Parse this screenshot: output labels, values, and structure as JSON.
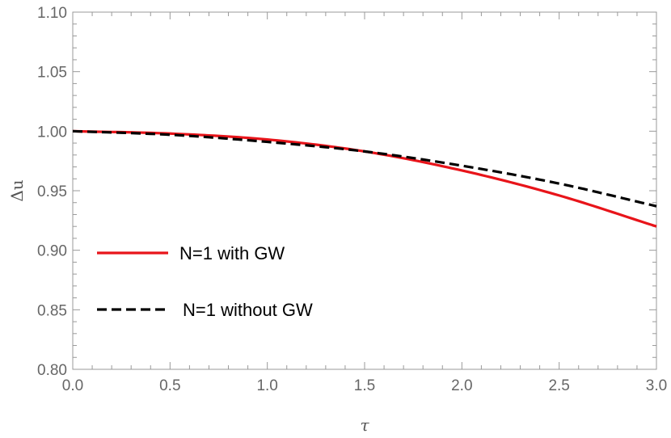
{
  "chart_data": {
    "type": "line",
    "title": "",
    "xlabel": "τ",
    "ylabel": "Δu",
    "xlim": [
      0.0,
      3.0
    ],
    "ylim": [
      0.8,
      1.1
    ],
    "xticks": [
      "0.0",
      "0.5",
      "1.0",
      "1.5",
      "2.0",
      "2.5",
      "3.0"
    ],
    "yticks": [
      "0.80",
      "0.85",
      "0.90",
      "0.95",
      "1.00",
      "1.05",
      "1.10"
    ],
    "grid": false,
    "legend_position": "left",
    "series": [
      {
        "name": "N=1 with GW",
        "color": "#e8141a",
        "style": "solid",
        "x": [
          0.0,
          0.5,
          1.0,
          1.5,
          2.0,
          2.5,
          3.0
        ],
        "y": [
          1.0,
          0.998,
          0.993,
          0.983,
          0.967,
          0.946,
          0.92
        ]
      },
      {
        "name": "N=1 without GW",
        "color": "#000000",
        "style": "dashed",
        "x": [
          0.0,
          0.5,
          1.0,
          1.5,
          2.0,
          2.5,
          3.0
        ],
        "y": [
          1.0,
          0.997,
          0.991,
          0.983,
          0.971,
          0.956,
          0.937
        ]
      }
    ]
  }
}
